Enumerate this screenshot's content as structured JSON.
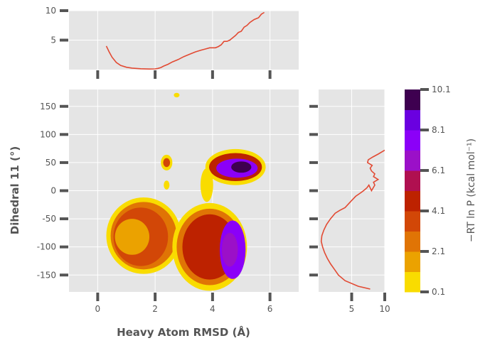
{
  "chart_data": [
    {
      "type": "line",
      "panel": "top-marginal",
      "series": [
        {
          "values_x": [
            0.3,
            0.4,
            0.5,
            0.65,
            0.8,
            1.0,
            1.2,
            1.5,
            1.8,
            2.0,
            2.1,
            2.2,
            2.3,
            2.45,
            2.6,
            2.8,
            3.0,
            3.2,
            3.4,
            3.6,
            3.75,
            3.9,
            4.1,
            4.2,
            4.3,
            4.4,
            4.5,
            4.6,
            4.7,
            4.8,
            4.9,
            5.0,
            5.1,
            5.2,
            5.3,
            5.45,
            5.6,
            5.7,
            5.8
          ],
          "values_y": [
            4.0,
            3.0,
            2.1,
            1.2,
            0.7,
            0.4,
            0.25,
            0.15,
            0.1,
            0.12,
            0.2,
            0.35,
            0.6,
            0.9,
            1.3,
            1.7,
            2.2,
            2.6,
            3.0,
            3.3,
            3.5,
            3.7,
            3.7,
            3.9,
            4.2,
            4.8,
            4.8,
            5.0,
            5.4,
            5.8,
            6.3,
            6.5,
            7.2,
            7.5,
            8.0,
            8.5,
            8.8,
            9.4,
            9.7
          ]
        }
      ],
      "y_ticks": [
        "5",
        "10"
      ],
      "ylim": [
        0,
        10
      ],
      "xlim": [
        -1,
        7
      ]
    },
    {
      "type": "heatmap",
      "panel": "main-contour",
      "xlabel": "Heavy Atom RMSD (Å)",
      "ylabel": "Dihedral 11 (°)",
      "x_ticks": [
        "0",
        "2",
        "4",
        "6"
      ],
      "y_ticks": [
        "-150",
        "-100",
        "-50",
        "0",
        "50",
        "100",
        "150"
      ],
      "xlim": [
        -1,
        7
      ],
      "ylim": [
        -180,
        180
      ],
      "regions": [
        {
          "cx": 1.6,
          "cy": -80,
          "rx": 1.3,
          "ry": 68,
          "level": 0.1
        },
        {
          "cx": 1.6,
          "cy": -80,
          "rx": 1.15,
          "ry": 60,
          "level": 2.1
        },
        {
          "cx": 1.5,
          "cy": -82,
          "rx": 0.95,
          "ry": 52,
          "level": 3.1
        },
        {
          "cx": 1.2,
          "cy": -82,
          "rx": 0.6,
          "ry": 32,
          "level": 1.1
        },
        {
          "cx": 3.9,
          "cy": -100,
          "rx": 1.3,
          "ry": 78,
          "level": 0.1
        },
        {
          "cx": 3.9,
          "cy": -100,
          "rx": 1.15,
          "ry": 68,
          "level": 2.1
        },
        {
          "cx": 3.9,
          "cy": -100,
          "rx": 0.95,
          "ry": 58,
          "level": 4.1
        },
        {
          "cx": 4.7,
          "cy": -105,
          "rx": 0.45,
          "ry": 52,
          "level": 7.1
        },
        {
          "cx": 4.6,
          "cy": -105,
          "rx": 0.28,
          "ry": 30,
          "level": 6.1
        },
        {
          "cx": 4.8,
          "cy": 42,
          "rx": 1.05,
          "ry": 32,
          "level": 0.1
        },
        {
          "cx": 4.8,
          "cy": 42,
          "rx": 0.92,
          "ry": 25,
          "level": 4.1
        },
        {
          "cx": 4.85,
          "cy": 40,
          "rx": 0.72,
          "ry": 17,
          "level": 7.1
        },
        {
          "cx": 5.0,
          "cy": 42,
          "rx": 0.35,
          "ry": 10,
          "level": 9.1
        },
        {
          "cx": 3.8,
          "cy": 10,
          "rx": 0.22,
          "ry": 30,
          "level": 0.1
        },
        {
          "cx": 2.4,
          "cy": 50,
          "rx": 0.2,
          "ry": 14,
          "level": 0.1
        },
        {
          "cx": 2.4,
          "cy": 50,
          "rx": 0.12,
          "ry": 8,
          "level": 3.1
        },
        {
          "cx": 2.4,
          "cy": 10,
          "rx": 0.1,
          "ry": 8,
          "level": 0.1
        },
        {
          "cx": 2.75,
          "cy": 170,
          "rx": 0.1,
          "ry": 4,
          "level": 0.1
        }
      ]
    },
    {
      "type": "line",
      "panel": "right-marginal",
      "series": [
        {
          "values_x": [
            7.8,
            6.0,
            4.0,
            3.0,
            2.4,
            1.8,
            1.3,
            0.9,
            0.6,
            0.4,
            0.5,
            0.8,
            1.2,
            1.8,
            2.5,
            3.2,
            4.0,
            4.8,
            5.6,
            6.2,
            6.8,
            7.3,
            7.6,
            8.0,
            8.5,
            8.3,
            9.0,
            8.3,
            8.5,
            8.0,
            7.8,
            8.1,
            7.4,
            7.5,
            8.2,
            9.0,
            10.0
          ],
          "values_y": [
            -175,
            -170,
            -160,
            -150,
            -140,
            -130,
            -120,
            -110,
            -100,
            -90,
            -80,
            -70,
            -60,
            -50,
            -40,
            -35,
            -30,
            -20,
            -10,
            -5,
            0,
            5,
            10,
            0,
            10,
            15,
            20,
            25,
            30,
            35,
            40,
            45,
            50,
            55,
            60,
            65,
            72
          ]
        }
      ],
      "x_ticks": [
        "5",
        "10"
      ],
      "xlim": [
        0,
        10
      ],
      "ylim": [
        -180,
        180
      ]
    },
    {
      "type": "colorbar",
      "label": "−RT ln P (kcal mol⁻¹)",
      "ticks": [
        "0.1",
        "2.1",
        "4.1",
        "6.1",
        "8.1",
        "10.1"
      ],
      "levels": [
        0.1,
        1.1,
        2.1,
        3.1,
        4.1,
        5.1,
        6.1,
        7.1,
        8.1,
        9.1,
        10.1
      ],
      "colors": [
        "#f9dc00",
        "#eba200",
        "#e07405",
        "#d24707",
        "#bd2200",
        "#b01050",
        "#9b10c8",
        "#8b00f8",
        "#6a00e0",
        "#3e0050"
      ]
    }
  ],
  "style": {
    "panel_bg": "#e5e5e5",
    "grid": "#ffffff",
    "line_color": "#e24a33",
    "tick_color": "#555555"
  }
}
